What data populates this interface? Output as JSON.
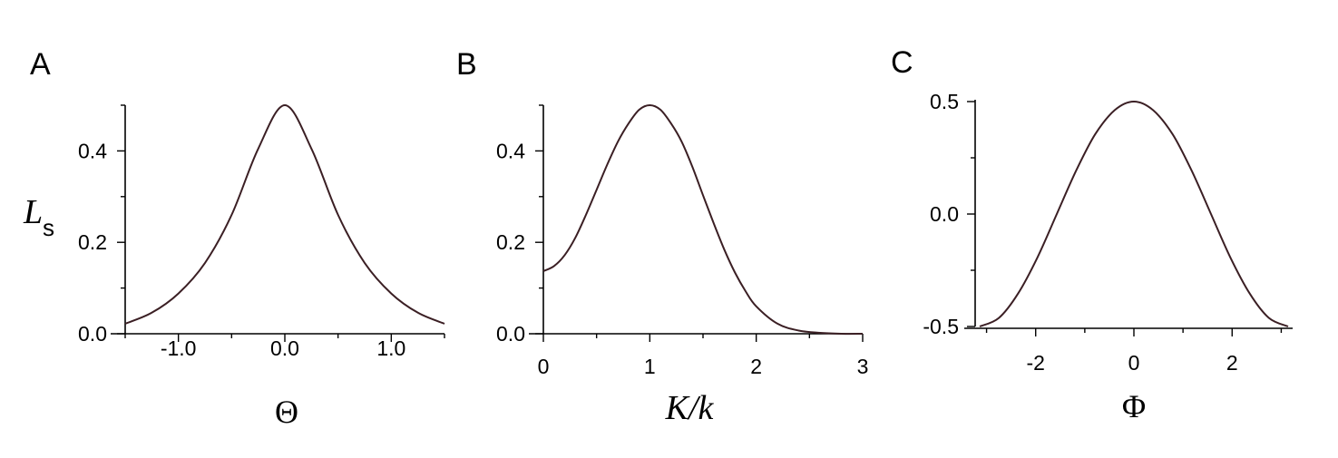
{
  "colors": {
    "curve": "#3b1f24",
    "axis": "#000000"
  },
  "chart_data": [
    {
      "type": "line",
      "panel_label": "A",
      "xlabel": "Θ",
      "ylabel_main": "L",
      "ylabel_sub": "s",
      "xlim": [
        -1.5,
        1.5
      ],
      "ylim": [
        0,
        0.5
      ],
      "xticks": [
        {
          "v": -1.0,
          "label": "-1.0"
        },
        {
          "v": 0.0,
          "label": "0.0"
        },
        {
          "v": 1.0,
          "label": "1.0"
        }
      ],
      "xminor": [
        -1.5,
        -0.5,
        0.5,
        1.5
      ],
      "yticks": [
        {
          "v": 0.0,
          "label": "0.0"
        },
        {
          "v": 0.2,
          "label": "0.2"
        },
        {
          "v": 0.4,
          "label": "0.4"
        }
      ],
      "yminor": [
        0.1,
        0.3,
        0.5
      ],
      "series": [
        {
          "x": [
            -1.5,
            -1.25,
            -1.0,
            -0.75,
            -0.5,
            -0.25,
            0.0,
            0.25,
            0.5,
            0.75,
            1.0,
            1.25,
            1.5
          ],
          "y": [
            0.022,
            0.046,
            0.088,
            0.155,
            0.26,
            0.405,
            0.5,
            0.405,
            0.26,
            0.155,
            0.088,
            0.046,
            0.022
          ]
        }
      ]
    },
    {
      "type": "line",
      "panel_label": "B",
      "xlabel": "K/k",
      "xlim": [
        0,
        3
      ],
      "ylim": [
        0,
        0.5
      ],
      "xticks": [
        {
          "v": 0,
          "label": "0"
        },
        {
          "v": 1,
          "label": "1"
        },
        {
          "v": 2,
          "label": "2"
        },
        {
          "v": 3,
          "label": "3"
        }
      ],
      "xminor": [
        0.5,
        1.5,
        2.5
      ],
      "yticks": [
        {
          "v": 0.0,
          "label": "0.0"
        },
        {
          "v": 0.2,
          "label": "0.2"
        },
        {
          "v": 0.4,
          "label": "0.4"
        }
      ],
      "yminor": [
        0.1,
        0.3,
        0.5
      ],
      "series": [
        {
          "x": [
            0.0,
            0.1,
            0.2,
            0.3,
            0.4,
            0.5,
            0.6,
            0.7,
            0.8,
            0.9,
            1.0,
            1.1,
            1.2,
            1.3,
            1.4,
            1.5,
            1.6,
            1.7,
            1.8,
            1.9,
            2.0,
            2.2,
            2.4,
            2.6,
            2.8,
            3.0
          ],
          "y": [
            0.137,
            0.148,
            0.172,
            0.21,
            0.26,
            0.315,
            0.37,
            0.42,
            0.46,
            0.49,
            0.5,
            0.49,
            0.46,
            0.42,
            0.365,
            0.303,
            0.242,
            0.184,
            0.134,
            0.093,
            0.06,
            0.022,
            0.007,
            0.002,
            0.0,
            0.0
          ]
        }
      ]
    },
    {
      "type": "line",
      "panel_label": "C",
      "xlabel": "Φ",
      "xlim": [
        -3.14,
        3.14
      ],
      "ylim": [
        -0.5,
        0.5
      ],
      "xticks": [
        {
          "v": -2,
          "label": "-2"
        },
        {
          "v": 0,
          "label": "0"
        },
        {
          "v": 2,
          "label": "2"
        }
      ],
      "xminor": [
        -3,
        -1,
        1,
        3
      ],
      "yticks": [
        {
          "v": -0.5,
          "label": "-0.5"
        },
        {
          "v": 0.0,
          "label": "0.0"
        },
        {
          "v": 0.5,
          "label": "0.5"
        }
      ],
      "yminor": [
        -0.25,
        0.25
      ],
      "series": [
        {
          "x": [
            -3.14,
            -2.75,
            -2.36,
            -1.96,
            -1.57,
            -1.18,
            -0.79,
            -0.39,
            0.0,
            0.39,
            0.79,
            1.18,
            1.57,
            1.96,
            2.36,
            2.75,
            3.14
          ],
          "y": [
            -0.5,
            -0.462,
            -0.354,
            -0.191,
            0.0,
            0.191,
            0.354,
            0.462,
            0.5,
            0.462,
            0.354,
            0.191,
            0.0,
            -0.191,
            -0.354,
            -0.462,
            -0.5
          ]
        }
      ]
    }
  ]
}
